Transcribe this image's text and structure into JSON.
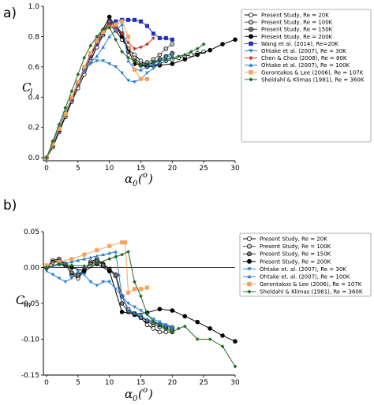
{
  "chart_data": [
    {
      "type": "line",
      "panel_label": "a)",
      "ylabel_main": "C",
      "ylabel_sub": "l",
      "xlabel_main": "α",
      "xlabel_sub": "0",
      "xlabel_tail": "(",
      "xlabel_sup": "o",
      "xlabel_close": ")",
      "xlim": [
        -0.5,
        30
      ],
      "ylim": [
        -0.02,
        1.0
      ],
      "xticks": [
        "0",
        "5",
        "10",
        "15",
        "20",
        "25",
        "30"
      ],
      "xtick_vals": [
        0,
        5,
        10,
        15,
        20,
        25,
        30
      ],
      "yticks": [
        "0.0",
        "0.2",
        "0.4",
        "0.6",
        "0.8",
        "1.0"
      ],
      "ytick_vals": [
        0,
        0.2,
        0.4,
        0.6,
        0.8,
        1.0
      ],
      "grid": false,
      "legend_position": "right",
      "series": [
        {
          "name": "Present Study, Re = 20K",
          "color": "#000000",
          "marker": "circle-open",
          "x": [
            0,
            1,
            2,
            3,
            4,
            5,
            6,
            7,
            8,
            9,
            10,
            11,
            12,
            13,
            14,
            15,
            16,
            17,
            18,
            19,
            20,
            21,
            22,
            23,
            24,
            25
          ],
          "y": [
            0.0,
            0.07,
            0.17,
            0.27,
            0.37,
            0.46,
            0.55,
            0.64,
            0.73,
            0.81,
            0.88,
            0.84,
            0.78,
            0.72,
            0.68,
            0.64,
            0.61,
            0.61,
            0.62,
            0.64,
            0.65,
            0.66,
            0.67,
            0.68,
            0.69,
            0.7
          ]
        },
        {
          "name": "Present Study, Re = 100K",
          "color": "#555555",
          "marker": "circle-gray-light",
          "x": [
            0,
            1,
            2,
            3,
            4,
            5,
            6,
            7,
            8,
            9,
            10,
            11,
            12,
            13,
            14,
            15,
            16,
            17,
            18,
            19,
            20
          ],
          "y": [
            0.0,
            0.08,
            0.18,
            0.28,
            0.38,
            0.48,
            0.57,
            0.66,
            0.75,
            0.83,
            0.89,
            0.87,
            0.82,
            0.72,
            0.66,
            0.62,
            0.63,
            0.65,
            0.68,
            0.72,
            0.75
          ]
        },
        {
          "name": "Present Study, Re = 150K",
          "color": "#333333",
          "marker": "circle-gray",
          "x": [
            0,
            1,
            2,
            3,
            4,
            5,
            6,
            7,
            8,
            9,
            10,
            11,
            12,
            13,
            14,
            15,
            16,
            17,
            18,
            19,
            20
          ],
          "y": [
            0.0,
            0.08,
            0.18,
            0.29,
            0.39,
            0.49,
            0.58,
            0.67,
            0.76,
            0.84,
            0.9,
            0.88,
            0.82,
            0.7,
            0.64,
            0.61,
            0.61,
            0.63,
            0.65,
            0.67,
            0.69
          ]
        },
        {
          "name": "Present Study, Re = 200K",
          "color": "#000000",
          "marker": "circle-filled",
          "x": [
            0,
            2,
            4,
            6,
            8,
            10,
            12,
            14,
            16,
            18,
            20,
            22,
            24,
            26,
            28,
            30
          ],
          "y": [
            0.0,
            0.18,
            0.39,
            0.58,
            0.77,
            0.93,
            0.8,
            0.62,
            0.6,
            0.61,
            0.62,
            0.65,
            0.68,
            0.71,
            0.75,
            0.78
          ]
        },
        {
          "name": "Wang et al. (2014), Re=20K",
          "color": "#1f2fbf",
          "marker": "square",
          "x": [
            0,
            1,
            2,
            3,
            4,
            5,
            6,
            7,
            8,
            9,
            10,
            11,
            12,
            13,
            14,
            15,
            16,
            17,
            18,
            19,
            20
          ],
          "y": [
            0.0,
            0.09,
            0.19,
            0.29,
            0.39,
            0.49,
            0.58,
            0.67,
            0.75,
            0.82,
            0.88,
            0.9,
            0.91,
            0.91,
            0.91,
            0.9,
            0.87,
            0.82,
            0.79,
            0.79,
            0.78
          ]
        },
        {
          "name": "Ohtake et al. (2007), Re = 30K",
          "color": "#2a7fd4",
          "marker": "triangle-down",
          "x": [
            0,
            1,
            2,
            3,
            4,
            5,
            6,
            7,
            8,
            9,
            10,
            11,
            12,
            13,
            14,
            15,
            16,
            17,
            18,
            19,
            20
          ],
          "y": [
            0.0,
            0.1,
            0.2,
            0.3,
            0.4,
            0.5,
            0.58,
            0.62,
            0.64,
            0.64,
            0.62,
            0.6,
            0.56,
            0.51,
            0.5,
            0.52,
            0.56,
            0.59,
            0.62,
            0.64,
            0.67
          ]
        },
        {
          "name": "Chen & Choa (2008), Re = 80K",
          "color": "#c0392b",
          "marker": "diamond",
          "x": [
            0,
            2,
            4,
            6,
            8,
            10,
            11,
            12,
            13,
            14,
            15,
            16,
            17
          ],
          "y": [
            0.0,
            0.19,
            0.39,
            0.58,
            0.76,
            0.88,
            0.86,
            0.82,
            0.76,
            0.72,
            0.73,
            0.75,
            0.79
          ]
        },
        {
          "name": "Ohtake et al. (2007), Re = 100K",
          "color": "#2a7fd4",
          "marker": "triangle-up",
          "x": [
            0,
            1,
            2,
            3,
            4,
            5,
            6,
            7,
            8,
            9,
            10,
            11,
            12,
            13,
            14,
            15,
            16,
            17,
            18,
            19,
            20
          ],
          "y": [
            0.0,
            0.1,
            0.2,
            0.3,
            0.4,
            0.5,
            0.58,
            0.63,
            0.67,
            0.73,
            0.8,
            0.84,
            0.88,
            0.64,
            0.58,
            0.58,
            0.6,
            0.62,
            0.64,
            0.66,
            0.68
          ]
        },
        {
          "name": "Gerontakos & Lee (2006), Re = 107K",
          "color": "#f5a35c",
          "marker": "square",
          "x": [
            0,
            1,
            2,
            3,
            4,
            5,
            6,
            7,
            8,
            9,
            10,
            11,
            12,
            13,
            14,
            15,
            16
          ],
          "y": [
            0.0,
            0.09,
            0.19,
            0.29,
            0.4,
            0.5,
            0.6,
            0.69,
            0.77,
            0.83,
            0.86,
            0.88,
            0.9,
            0.8,
            0.58,
            0.52,
            0.52
          ]
        },
        {
          "name": "Sheldahl & Klimas (1981), Re = 360K",
          "color": "#1d6b22",
          "marker": "diamond",
          "x": [
            0,
            1,
            2,
            3,
            4,
            5,
            6,
            7,
            8,
            9,
            10,
            11,
            12,
            13,
            14,
            15,
            16,
            17,
            18,
            19,
            20,
            21,
            22,
            23,
            24,
            25
          ],
          "y": [
            0.0,
            0.11,
            0.22,
            0.33,
            0.44,
            0.55,
            0.66,
            0.74,
            0.8,
            0.85,
            0.86,
            0.78,
            0.7,
            0.66,
            0.64,
            0.61,
            0.62,
            0.63,
            0.64,
            0.65,
            0.66,
            0.67,
            0.68,
            0.7,
            0.72,
            0.75
          ]
        }
      ]
    },
    {
      "type": "line",
      "panel_label": "b)",
      "ylabel_main": "C",
      "ylabel_sub": "m",
      "xlabel_main": "α",
      "xlabel_sub": "0",
      "xlabel_tail": "(",
      "xlabel_sup": "o",
      "xlabel_close": ")",
      "xlim": [
        -0.5,
        30
      ],
      "ylim": [
        -0.15,
        0.05
      ],
      "xticks": [
        "0",
        "5",
        "10",
        "15",
        "20",
        "25",
        "30"
      ],
      "xtick_vals": [
        0,
        5,
        10,
        15,
        20,
        25,
        30
      ],
      "yticks": [
        "0.05",
        "0.00",
        "-0.05",
        "-0.10",
        "-0.15"
      ],
      "ytick_vals": [
        0.05,
        0,
        -0.05,
        -0.1,
        -0.15
      ],
      "zero_line": true,
      "grid": false,
      "legend_position": "right",
      "series": [
        {
          "name": "Present Study, Re = 20K",
          "color": "#000000",
          "marker": "circle-open",
          "x": [
            0,
            1,
            2,
            3,
            4,
            5,
            6,
            7,
            8,
            9,
            10,
            11,
            12,
            13,
            14,
            15,
            16,
            17,
            18,
            19,
            20
          ],
          "y": [
            0.0,
            0.01,
            0.012,
            0.005,
            -0.01,
            -0.015,
            -0.005,
            0.008,
            0.012,
            0.005,
            -0.002,
            -0.01,
            -0.04,
            -0.06,
            -0.065,
            -0.07,
            -0.08,
            -0.085,
            -0.09,
            -0.09,
            -0.09
          ]
        },
        {
          "name": "Present Study, Re = 100K",
          "color": "#555555",
          "marker": "circle-gray-light",
          "x": [
            0,
            1,
            2,
            3,
            4,
            5,
            6,
            7,
            8,
            9,
            10,
            11,
            12,
            13,
            14,
            15,
            16,
            17,
            18,
            19,
            20
          ],
          "y": [
            0.0,
            0.008,
            0.01,
            0.004,
            -0.008,
            -0.012,
            -0.004,
            0.006,
            0.01,
            0.004,
            -0.004,
            -0.012,
            -0.04,
            -0.058,
            -0.064,
            -0.068,
            -0.075,
            -0.08,
            -0.083,
            -0.085,
            -0.086
          ]
        },
        {
          "name": "Present Study, Re = 150K",
          "color": "#333333",
          "marker": "circle-gray",
          "x": [
            0,
            1,
            2,
            3,
            4,
            5,
            6,
            7,
            8,
            9,
            10,
            11,
            12,
            13,
            14,
            15,
            16,
            17,
            18,
            19,
            20
          ],
          "y": [
            0.0,
            0.007,
            0.009,
            0.003,
            -0.007,
            -0.01,
            -0.003,
            0.005,
            0.009,
            0.003,
            -0.003,
            -0.01,
            -0.05,
            -0.062,
            -0.066,
            -0.07,
            -0.074,
            -0.077,
            -0.08,
            -0.082,
            -0.084
          ]
        },
        {
          "name": "Present Study, Re = 200K",
          "color": "#000000",
          "marker": "circle-filled",
          "x": [
            0,
            2,
            4,
            6,
            8,
            10,
            12,
            14,
            16,
            18,
            20,
            22,
            24,
            26,
            28,
            30
          ],
          "y": [
            0.0,
            0.005,
            0.0,
            -0.005,
            0.005,
            -0.005,
            -0.062,
            -0.065,
            -0.063,
            -0.058,
            -0.06,
            -0.068,
            -0.076,
            -0.085,
            -0.095,
            -0.103
          ]
        },
        {
          "name": "Ohtake et. al. (2007), Re = 30K",
          "color": "#2a7fd4",
          "marker": "triangle-down",
          "x": [
            0,
            1,
            2,
            3,
            4,
            5,
            6,
            7,
            8,
            9,
            10,
            11,
            12,
            13,
            14,
            15,
            16,
            17,
            18,
            19,
            20
          ],
          "y": [
            -0.005,
            -0.01,
            -0.015,
            -0.02,
            -0.015,
            -0.005,
            -0.01,
            -0.02,
            -0.025,
            -0.02,
            -0.02,
            -0.03,
            -0.04,
            -0.05,
            -0.055,
            -0.06,
            -0.066,
            -0.072,
            -0.076,
            -0.08,
            -0.083
          ]
        },
        {
          "name": "Ohtake et. al. (2007), Re = 100K",
          "color": "#2a7fd4",
          "marker": "triangle-up",
          "x": [
            0,
            1,
            2,
            3,
            4,
            5,
            6,
            7,
            8,
            9,
            10,
            11,
            11.5,
            12,
            13,
            14,
            15,
            16,
            17,
            18,
            19,
            20
          ],
          "y": [
            0.0,
            0.002,
            0.004,
            0.006,
            0.008,
            0.01,
            0.012,
            0.014,
            0.016,
            0.018,
            0.02,
            0.022,
            -0.01,
            -0.04,
            -0.06,
            -0.064,
            -0.068,
            -0.072,
            -0.075,
            -0.078,
            -0.08,
            -0.082
          ]
        },
        {
          "name": "Gerontakos & Lee (2006), Re = 107K",
          "color": "#f5a35c",
          "marker": "square",
          "x": [
            0,
            2,
            4,
            6,
            8,
            10,
            12,
            12.5,
            13,
            14,
            15,
            16
          ],
          "y": [
            0.003,
            0.008,
            0.012,
            0.018,
            0.024,
            0.03,
            0.035,
            0.035,
            -0.035,
            -0.03,
            -0.03,
            -0.028
          ]
        },
        {
          "name": "Sheldahl & Klimas (1981), Re = 360K",
          "color": "#1d6b22",
          "marker": "diamond",
          "x": [
            0,
            2,
            4,
            6,
            8,
            10,
            11,
            12,
            13,
            14,
            15,
            16,
            17,
            18,
            19,
            20,
            21,
            22,
            24,
            26,
            28,
            30
          ],
          "y": [
            0.0,
            0.005,
            0.003,
            0.002,
            0.006,
            0.012,
            0.015,
            0.018,
            0.022,
            -0.02,
            -0.04,
            -0.065,
            -0.075,
            -0.08,
            -0.085,
            -0.09,
            -0.085,
            -0.082,
            -0.1,
            -0.1,
            -0.11,
            -0.138
          ]
        }
      ]
    }
  ]
}
